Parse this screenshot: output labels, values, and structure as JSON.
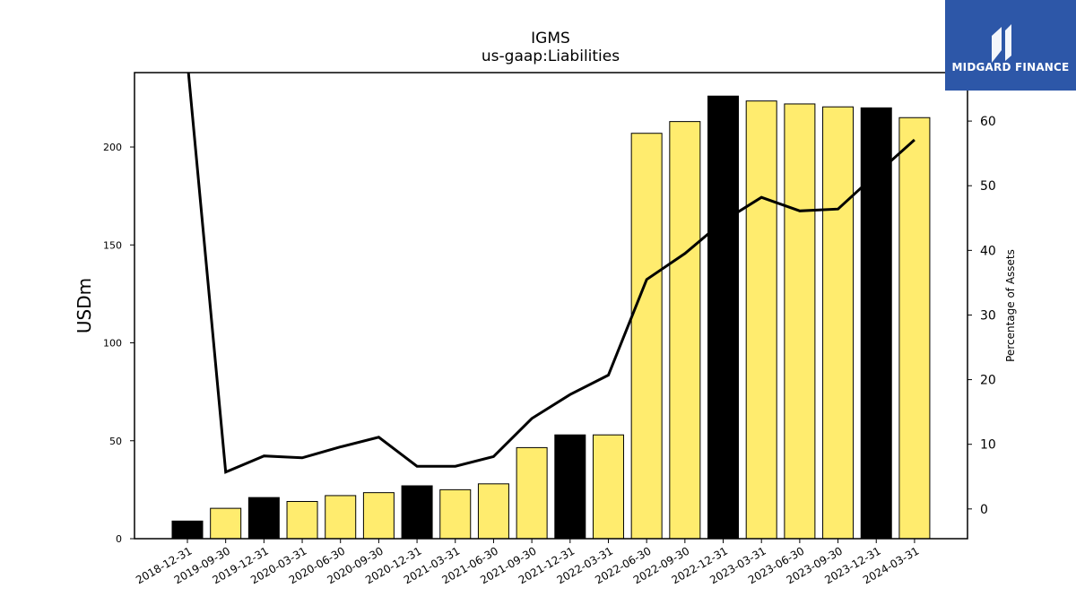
{
  "logo": {
    "text": "MIDGARD FINANCE",
    "background": "#2d57a8"
  },
  "chart_data": {
    "type": "bar",
    "title": "IGMS",
    "subtitle": "us-gaap:Liabilities",
    "ylabel": "USDm",
    "y2label": "Percentage of Assets",
    "ylim": [
      0,
      238
    ],
    "y2lim": [
      -4.6,
      67.5
    ],
    "yticks": [
      0,
      50,
      100,
      150,
      200
    ],
    "y2ticks": [
      0,
      10,
      20,
      30,
      40,
      50,
      60
    ],
    "categories": [
      "2018-12-31",
      "2019-09-30",
      "2019-12-31",
      "2020-03-31",
      "2020-06-30",
      "2020-09-30",
      "2020-12-31",
      "2021-03-31",
      "2021-06-30",
      "2021-09-30",
      "2021-12-31",
      "2022-03-31",
      "2022-06-30",
      "2022-09-30",
      "2022-12-31",
      "2023-03-31",
      "2023-06-30",
      "2023-09-30",
      "2023-12-31",
      "2024-03-31"
    ],
    "series": [
      {
        "type": "bar",
        "values": [
          9,
          15.5,
          21,
          19,
          22,
          23.5,
          27,
          25,
          28,
          46.5,
          53,
          53,
          207,
          213,
          226,
          223.5,
          222,
          220.5,
          220,
          215
        ]
      },
      {
        "type": "line",
        "axis": "right",
        "values": [
          null,
          5.7,
          8.2,
          7.9,
          9.6,
          11.1,
          6.6,
          6.6,
          8.1,
          14.0,
          17.7,
          20.7,
          35.5,
          39.5,
          44.5,
          48.2,
          46.1,
          46.4,
          51.8,
          57.1
        ],
        "note_first_point_offscale": true,
        "color": "#000000"
      }
    ],
    "bar_colors": [
      "#000000",
      "#ffec6e",
      "#000000",
      "#ffec6e",
      "#ffec6e",
      "#ffec6e",
      "#000000",
      "#ffec6e",
      "#ffec6e",
      "#ffec6e",
      "#000000",
      "#ffec6e",
      "#ffec6e",
      "#ffec6e",
      "#000000",
      "#ffec6e",
      "#ffec6e",
      "#ffec6e",
      "#000000",
      "#ffec6e"
    ],
    "grid": false,
    "legend": "none"
  }
}
